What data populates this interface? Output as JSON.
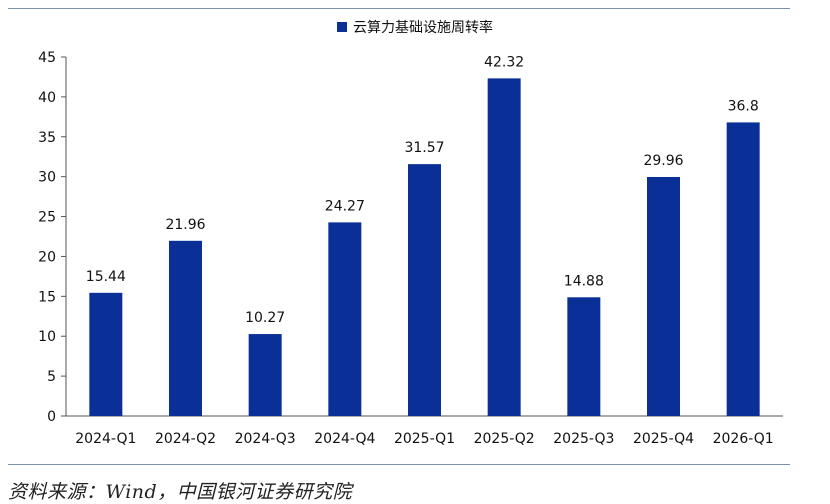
{
  "colors": {
    "bar": "#0a2f96",
    "axis": "#555555",
    "rule": "#7e8fa8"
  },
  "chart_data": {
    "type": "bar",
    "title": "",
    "xlabel": "",
    "ylabel": "",
    "legend": {
      "entries": [
        "云算力基础设施周转率"
      ],
      "placement": "top-center"
    },
    "categories": [
      "2024-Q1",
      "2024-Q2",
      "2024-Q3",
      "2024-Q4",
      "2025-Q1",
      "2025-Q2",
      "2025-Q3",
      "2025-Q4",
      "2026-Q1"
    ],
    "series": [
      {
        "name": "云算力基础设施周转率",
        "values": [
          15.44,
          21.96,
          10.27,
          24.27,
          31.57,
          42.32,
          14.88,
          29.96,
          36.8
        ],
        "labels": [
          "15.44",
          "21.96",
          "10.27",
          "24.27",
          "31.57",
          "42.32",
          "14.88",
          "29.96",
          "36.8"
        ]
      }
    ],
    "ylim": [
      0,
      45
    ],
    "yticks": [
      0,
      5,
      10,
      15,
      20,
      25,
      30,
      35,
      40,
      45
    ],
    "grid": false
  },
  "source_note": "资料来源：Wind，中国银河证券研究院"
}
